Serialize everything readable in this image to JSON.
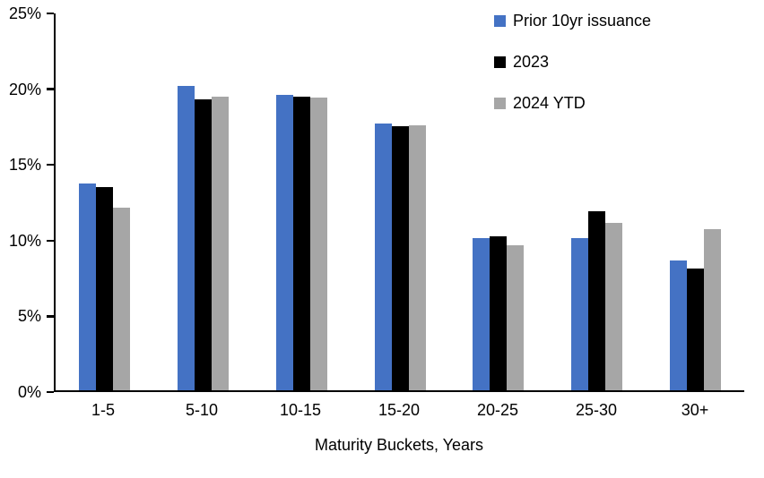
{
  "chart_data": {
    "type": "bar",
    "title": "",
    "xlabel": "Maturity Buckets, Years",
    "ylabel": "",
    "categories": [
      "1-5",
      "5-10",
      "10-15",
      "15-20",
      "20-25",
      "25-30",
      "30+"
    ],
    "series": [
      {
        "name": "Prior 10yr issuance",
        "color": "#4472C4",
        "values": [
          13.7,
          20.2,
          19.6,
          17.7,
          10.1,
          10.1,
          8.6
        ]
      },
      {
        "name": "2023",
        "color": "#000000",
        "values": [
          13.5,
          19.3,
          19.5,
          17.5,
          10.2,
          11.9,
          8.1
        ]
      },
      {
        "name": "2024 YTD",
        "color": "#A6A6A6",
        "values": [
          12.1,
          19.5,
          19.4,
          17.6,
          9.6,
          11.1,
          10.7
        ]
      }
    ],
    "ylim": [
      0,
      25
    ],
    "yticks": [
      0,
      5,
      10,
      15,
      20,
      25
    ],
    "ytick_labels": [
      "0%",
      "5%",
      "10%",
      "15%",
      "20%",
      "25%"
    ],
    "legend_position": "top-right",
    "grid": false,
    "axis_color": "#000000",
    "background_color": "#ffffff"
  }
}
